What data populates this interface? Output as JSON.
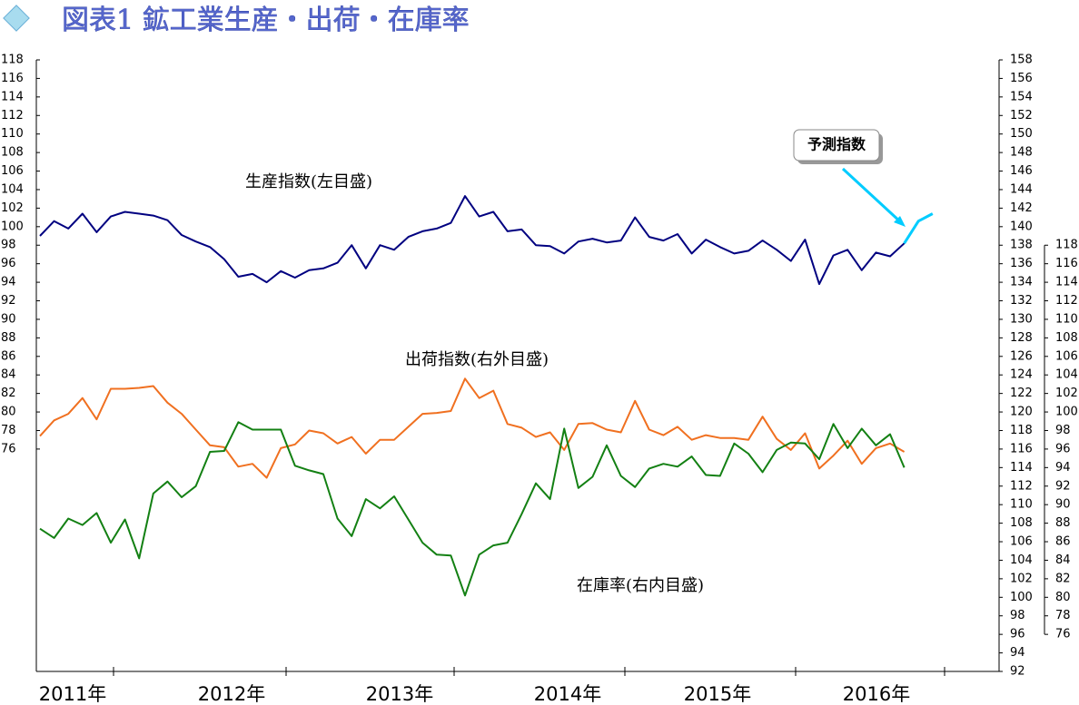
{
  "chart_data": {
    "type": "line",
    "title": "図表1 鉱工業生産・出荷・在庫率",
    "x_labels": [
      "2011年",
      "2012年",
      "2013年",
      "2014年",
      "2015年",
      "2016年"
    ],
    "ylim": [
      52,
      118
    ],
    "yticks": [
      76,
      78,
      80,
      82,
      84,
      86,
      88,
      90,
      92,
      94,
      96,
      98,
      100,
      102,
      104,
      106,
      108,
      110,
      112,
      114,
      116,
      118
    ],
    "y2lim": [
      92,
      158
    ],
    "y2ticks": [
      92,
      94,
      96,
      98,
      100,
      102,
      104,
      106,
      108,
      110,
      112,
      114,
      116,
      118,
      120,
      122,
      124,
      126,
      128,
      130,
      132,
      134,
      136,
      138,
      140,
      142,
      144,
      146,
      148,
      150,
      152,
      154,
      156,
      158
    ],
    "y3lim": [
      72,
      138
    ],
    "y3ticks": [
      76,
      78,
      80,
      82,
      84,
      86,
      88,
      90,
      92,
      94,
      96,
      98,
      100,
      102,
      104,
      106,
      108,
      110,
      112,
      114,
      116,
      118
    ],
    "series": [
      {
        "name": "生産指数(左目盛)",
        "color": "#000080",
        "axis": "y",
        "values": [
          99.0,
          100.6,
          99.8,
          101.4,
          99.4,
          101.1,
          101.6,
          101.4,
          101.2,
          100.7,
          99.1,
          98.4,
          97.8,
          96.5,
          94.6,
          94.9,
          94.0,
          95.2,
          94.5,
          95.3,
          95.5,
          96.1,
          98.0,
          95.5,
          98.0,
          97.5,
          98.9,
          99.5,
          99.8,
          100.4,
          103.3,
          101.1,
          101.6,
          99.5,
          99.7,
          98.0,
          97.9,
          97.1,
          98.4,
          98.7,
          98.3,
          98.5,
          101.0,
          98.9,
          98.5,
          99.2,
          97.1,
          98.6,
          97.8,
          97.1,
          97.4,
          98.5,
          97.5,
          96.3,
          98.6,
          93.8,
          96.9,
          97.5,
          95.3,
          97.2,
          96.8,
          98.2
        ]
      },
      {
        "name": "出荷指数(右外目盛)",
        "color": "#f07020",
        "axis": "y2",
        "values": [
          117.4,
          119.1,
          119.8,
          121.5,
          119.2,
          122.5,
          122.5,
          122.6,
          122.8,
          121.0,
          119.8,
          118.1,
          116.4,
          116.2,
          114.1,
          114.4,
          112.9,
          116.1,
          116.5,
          118.0,
          117.7,
          116.6,
          117.3,
          115.5,
          117.0,
          117.0,
          118.4,
          119.8,
          119.9,
          120.1,
          123.6,
          121.5,
          122.3,
          118.7,
          118.3,
          117.3,
          117.8,
          115.9,
          118.7,
          118.8,
          118.1,
          117.8,
          121.2,
          118.1,
          117.5,
          118.4,
          117.0,
          117.5,
          117.2,
          117.2,
          117.0,
          119.5,
          117.1,
          115.9,
          117.7,
          113.9,
          115.3,
          116.9,
          114.4,
          116.1,
          116.6,
          115.7
        ]
      },
      {
        "name": "在庫率(右内目盛)",
        "color": "#138013",
        "axis": "y3",
        "values": [
          87.4,
          86.4,
          88.5,
          87.8,
          89.1,
          85.9,
          88.4,
          84.2,
          91.2,
          92.5,
          90.8,
          92.0,
          95.7,
          95.8,
          98.9,
          98.1,
          98.1,
          98.1,
          94.2,
          93.7,
          93.3,
          88.5,
          86.6,
          90.6,
          89.6,
          90.9,
          88.4,
          85.9,
          84.6,
          84.5,
          80.2,
          84.6,
          85.6,
          85.9,
          89.0,
          92.3,
          90.6,
          98.2,
          91.8,
          93.0,
          96.4,
          93.1,
          91.9,
          93.9,
          94.4,
          94.1,
          95.2,
          93.2,
          93.1,
          96.6,
          95.5,
          93.5,
          95.9,
          96.7,
          96.6,
          94.9,
          98.7,
          96.1,
          98.2,
          96.4,
          97.6,
          94.0
        ]
      },
      {
        "name": "予測指数",
        "color": "#00ccff",
        "axis": "y",
        "values": [
          null,
          null,
          null,
          null,
          null,
          null,
          null,
          null,
          null,
          null,
          null,
          null,
          null,
          null,
          null,
          null,
          null,
          null,
          null,
          null,
          null,
          null,
          null,
          null,
          null,
          null,
          null,
          null,
          null,
          null,
          null,
          null,
          null,
          null,
          null,
          null,
          null,
          null,
          null,
          null,
          null,
          null,
          null,
          null,
          null,
          null,
          null,
          null,
          null,
          null,
          null,
          null,
          null,
          null,
          null,
          null,
          null,
          null,
          null,
          null,
          null,
          98.2,
          100.6,
          101.4
        ]
      }
    ]
  }
}
